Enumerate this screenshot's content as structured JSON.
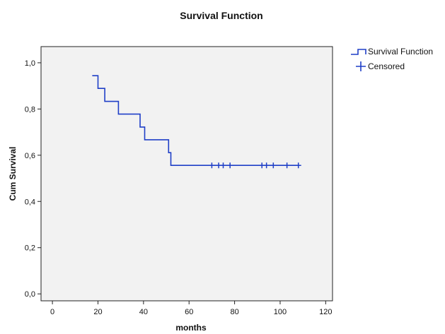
{
  "chart_data": {
    "type": "line",
    "title": "Survival Function",
    "xlabel": "months",
    "ylabel": "Cum Survival",
    "xlim": [
      -5,
      123
    ],
    "ylim": [
      -0.03,
      1.07
    ],
    "x_ticks": [
      0,
      20,
      40,
      60,
      80,
      100,
      120
    ],
    "x_tick_labels": [
      "0",
      "20",
      "40",
      "60",
      "80",
      "100",
      "120"
    ],
    "y_ticks": [
      0.0,
      0.2,
      0.4,
      0.6,
      0.8,
      1.0
    ],
    "y_tick_labels": [
      "0,0",
      "0,2",
      "0,4",
      "0,6",
      "0,8",
      "1,0"
    ],
    "grid": false,
    "legend_position": "top-right, outside plot",
    "series": [
      {
        "name": "Survival Function",
        "step": true,
        "color": "#1f3fc7",
        "x": [
          17.5,
          20,
          23,
          29,
          38.5,
          40.5,
          51,
          52,
          108
        ],
        "y": [
          0.944,
          0.889,
          0.833,
          0.778,
          0.722,
          0.667,
          0.611,
          0.556,
          0.556
        ]
      },
      {
        "name": "Censored",
        "marker": "plus",
        "color": "#1f3fc7",
        "x": [
          70,
          73,
          75,
          78,
          92,
          94,
          97,
          103,
          108
        ],
        "y": [
          0.556,
          0.556,
          0.556,
          0.556,
          0.556,
          0.556,
          0.556,
          0.556,
          0.556
        ]
      }
    ],
    "colors": {
      "plot_background": "#f2f2f2",
      "line": "#1f3fc7",
      "axis": "#222222"
    }
  }
}
